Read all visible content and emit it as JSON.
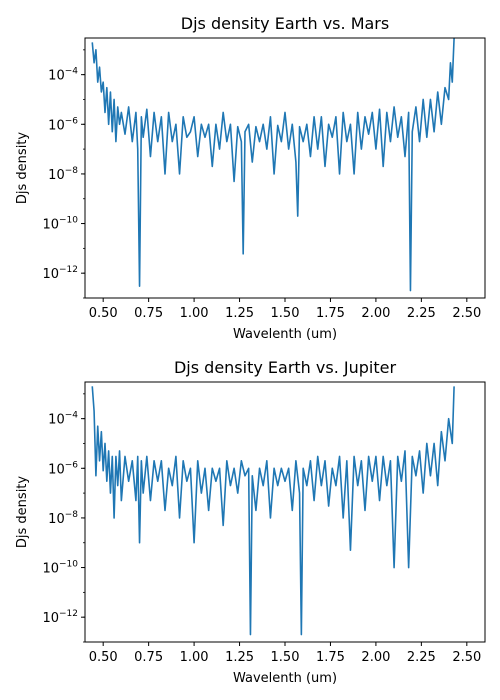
{
  "colors": {
    "line": "#1f77b4",
    "axes": "#000000",
    "background": "#ffffff"
  },
  "chart_data": [
    {
      "type": "line",
      "title": "Djs density Earth vs. Mars",
      "xlabel": "Wavelenth (um)",
      "ylabel": "Djs density",
      "yscale": "log",
      "xlim": [
        0.4,
        2.6
      ],
      "ylim": [
        1e-13,
        0.003
      ],
      "xticks": [
        "0.50",
        "0.75",
        "1.00",
        "1.25",
        "1.50",
        "1.75",
        "2.00",
        "2.25",
        "2.50"
      ],
      "yticks": [
        {
          "base": "10",
          "exp": "−12"
        },
        {
          "base": "10",
          "exp": "−10"
        },
        {
          "base": "10",
          "exp": "−8"
        },
        {
          "base": "10",
          "exp": "−6"
        },
        {
          "base": "10",
          "exp": "−4"
        }
      ],
      "grid": false,
      "series": [
        {
          "x": [
            0.44,
            0.45,
            0.46,
            0.47,
            0.48,
            0.49,
            0.5,
            0.51,
            0.52,
            0.53,
            0.54,
            0.55,
            0.56,
            0.57,
            0.58,
            0.59,
            0.6,
            0.62,
            0.64,
            0.66,
            0.68,
            0.69,
            0.7,
            0.71,
            0.72,
            0.74,
            0.76,
            0.78,
            0.8,
            0.82,
            0.84,
            0.86,
            0.88,
            0.9,
            0.92,
            0.94,
            0.96,
            0.98,
            1.0,
            1.02,
            1.04,
            1.06,
            1.08,
            1.1,
            1.12,
            1.14,
            1.16,
            1.18,
            1.2,
            1.22,
            1.24,
            1.26,
            1.27,
            1.28,
            1.3,
            1.32,
            1.34,
            1.36,
            1.38,
            1.4,
            1.42,
            1.44,
            1.46,
            1.48,
            1.5,
            1.52,
            1.54,
            1.56,
            1.57,
            1.58,
            1.6,
            1.62,
            1.64,
            1.66,
            1.68,
            1.7,
            1.72,
            1.74,
            1.76,
            1.78,
            1.8,
            1.82,
            1.84,
            1.86,
            1.88,
            1.9,
            1.92,
            1.94,
            1.96,
            1.98,
            2.0,
            2.02,
            2.04,
            2.06,
            2.08,
            2.1,
            2.12,
            2.14,
            2.16,
            2.18,
            2.19,
            2.2,
            2.22,
            2.24,
            2.26,
            2.28,
            2.3,
            2.32,
            2.34,
            2.36,
            2.38,
            2.4,
            2.41,
            2.42,
            2.43
          ],
          "y": [
            0.002,
            0.0003,
            0.001,
            5e-05,
            0.0002,
            2e-05,
            5e-05,
            3e-06,
            3e-05,
            1e-06,
            2e-05,
            5e-07,
            1e-05,
            2e-07,
            5e-06,
            1e-06,
            3e-06,
            4e-07,
            5e-06,
            2e-07,
            3e-06,
            1e-07,
            3e-13,
            2e-06,
            3e-07,
            4e-06,
            5e-08,
            3e-06,
            2e-07,
            2e-06,
            1e-08,
            3e-06,
            2e-07,
            1e-06,
            1e-08,
            2e-06,
            3e-07,
            5e-07,
            2e-06,
            5e-08,
            1e-06,
            3e-07,
            1e-06,
            2e-08,
            1e-06,
            1e-07,
            3e-06,
            2e-07,
            1e-06,
            5e-09,
            8e-07,
            2e-07,
            6e-12,
            5e-07,
            1e-06,
            3e-08,
            8e-07,
            2e-07,
            1e-06,
            1e-07,
            2e-06,
            1e-08,
            9e-07,
            2e-07,
            3e-06,
            1e-07,
            1e-06,
            3e-08,
            2e-10,
            8e-07,
            2e-07,
            1e-06,
            5e-08,
            2e-06,
            1e-07,
            2e-06,
            2e-08,
            1e-06,
            3e-07,
            2e-06,
            1e-08,
            3e-06,
            2e-07,
            1e-06,
            1e-08,
            3e-06,
            1e-07,
            2e-06,
            4e-07,
            3e-06,
            1e-07,
            4e-06,
            2e-08,
            3e-06,
            2e-07,
            5e-06,
            3e-07,
            2e-06,
            5e-08,
            3e-06,
            2e-13,
            5e-07,
            5e-06,
            2e-07,
            1e-05,
            3e-07,
            1e-05,
            5e-07,
            2e-05,
            1e-06,
            3e-05,
            1e-05,
            0.0003,
            5e-05,
            0.003
          ]
        }
      ]
    },
    {
      "type": "line",
      "title": "Djs density Earth vs. Jupiter",
      "xlabel": "Wavelenth (um)",
      "ylabel": "Djs density",
      "yscale": "log",
      "xlim": [
        0.4,
        2.6
      ],
      "ylim": [
        1e-13,
        0.003
      ],
      "xticks": [
        "0.50",
        "0.75",
        "1.00",
        "1.25",
        "1.50",
        "1.75",
        "2.00",
        "2.25",
        "2.50"
      ],
      "yticks": [
        {
          "base": "10",
          "exp": "−12"
        },
        {
          "base": "10",
          "exp": "−10"
        },
        {
          "base": "10",
          "exp": "−8"
        },
        {
          "base": "10",
          "exp": "−6"
        },
        {
          "base": "10",
          "exp": "−4"
        }
      ],
      "grid": false,
      "series": [
        {
          "x": [
            0.44,
            0.45,
            0.46,
            0.47,
            0.48,
            0.49,
            0.5,
            0.51,
            0.52,
            0.53,
            0.54,
            0.55,
            0.56,
            0.57,
            0.58,
            0.59,
            0.6,
            0.62,
            0.64,
            0.66,
            0.68,
            0.69,
            0.7,
            0.71,
            0.72,
            0.74,
            0.76,
            0.78,
            0.8,
            0.82,
            0.84,
            0.86,
            0.88,
            0.9,
            0.92,
            0.94,
            0.96,
            0.98,
            1.0,
            1.02,
            1.04,
            1.06,
            1.08,
            1.1,
            1.12,
            1.14,
            1.16,
            1.18,
            1.2,
            1.22,
            1.24,
            1.26,
            1.28,
            1.3,
            1.31,
            1.32,
            1.34,
            1.36,
            1.38,
            1.4,
            1.42,
            1.44,
            1.46,
            1.48,
            1.5,
            1.52,
            1.54,
            1.56,
            1.58,
            1.59,
            1.6,
            1.62,
            1.64,
            1.66,
            1.68,
            1.7,
            1.72,
            1.74,
            1.76,
            1.78,
            1.8,
            1.82,
            1.84,
            1.86,
            1.88,
            1.9,
            1.92,
            1.94,
            1.96,
            1.98,
            2.0,
            2.02,
            2.04,
            2.06,
            2.08,
            2.1,
            2.12,
            2.14,
            2.16,
            2.18,
            2.2,
            2.22,
            2.24,
            2.26,
            2.28,
            2.3,
            2.32,
            2.34,
            2.36,
            2.38,
            2.4,
            2.42,
            2.43
          ],
          "y": [
            0.002,
            0.0002,
            5e-07,
            5e-05,
            2e-06,
            3e-05,
            8e-07,
            1e-05,
            3e-07,
            5e-06,
            1e-07,
            3e-06,
            1e-08,
            3e-06,
            2e-07,
            5e-06,
            5e-08,
            3e-06,
            3e-07,
            2e-06,
            5e-08,
            3e-06,
            1e-09,
            2e-06,
            1e-07,
            3e-06,
            5e-08,
            2e-06,
            3e-07,
            2e-06,
            2e-08,
            1e-06,
            2e-07,
            3e-06,
            1e-08,
            2e-06,
            3e-07,
            1e-06,
            1e-09,
            2e-06,
            1e-07,
            1e-06,
            2e-08,
            1e-06,
            3e-07,
            1e-06,
            5e-09,
            2e-06,
            2e-07,
            1e-06,
            1e-07,
            2e-06,
            5e-07,
            1e-06,
            2e-13,
            5e-07,
            2e-08,
            1e-06,
            2e-07,
            2e-06,
            1e-08,
            1e-06,
            2e-07,
            1e-06,
            3e-07,
            1e-06,
            2e-08,
            2e-06,
            1e-07,
            2e-13,
            1e-06,
            2e-07,
            2e-06,
            5e-08,
            3e-06,
            2e-07,
            2e-06,
            3e-08,
            1e-06,
            2e-07,
            3e-06,
            1e-08,
            2e-06,
            5e-10,
            3e-06,
            2e-07,
            2e-06,
            2e-08,
            3e-06,
            3e-07,
            3e-06,
            5e-08,
            3e-06,
            2e-07,
            2e-06,
            1e-10,
            3e-06,
            3e-07,
            5e-06,
            1e-10,
            3e-06,
            5e-07,
            5e-06,
            1e-07,
            1e-05,
            5e-07,
            1e-05,
            2e-07,
            3e-05,
            2e-06,
            0.0001,
            1e-05,
            0.002
          ]
        }
      ]
    }
  ]
}
